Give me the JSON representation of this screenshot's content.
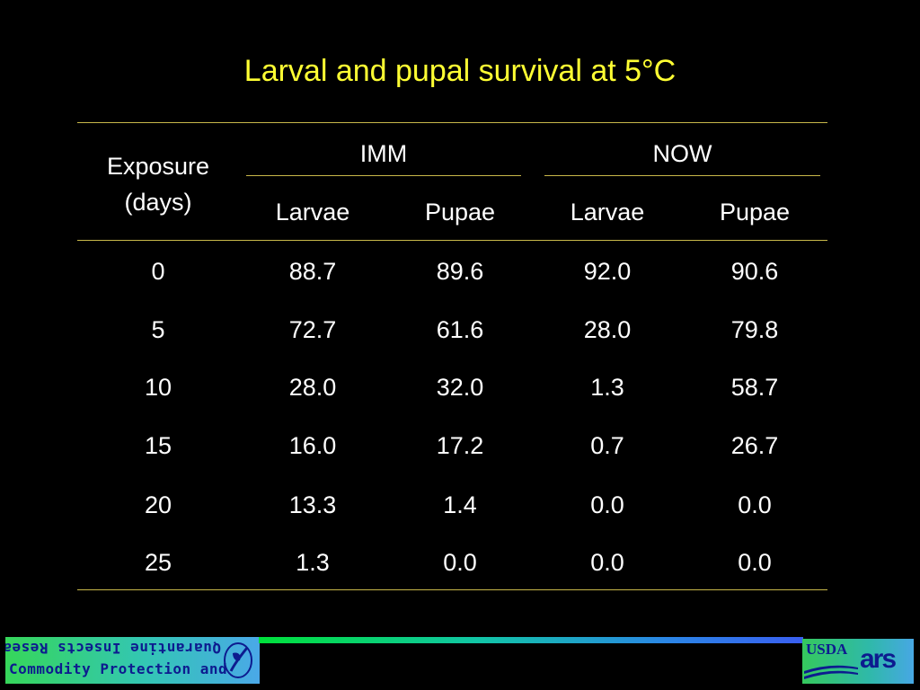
{
  "title": "Larval and pupal survival at 5°C",
  "table": {
    "exposure_header": [
      "Exposure",
      "(days)"
    ],
    "groups": [
      "IMM",
      "NOW"
    ],
    "subheaders": [
      "Larvae",
      "Pupae",
      "Larvae",
      "Pupae"
    ],
    "rows": [
      [
        "0",
        "88.7",
        "89.6",
        "92.0",
        "90.6"
      ],
      [
        "5",
        "72.7",
        "61.6",
        "28.0",
        "79.8"
      ],
      [
        "10",
        "28.0",
        "32.0",
        "1.3",
        "58.7"
      ],
      [
        "15",
        "16.0",
        "17.2",
        "0.7",
        "26.7"
      ],
      [
        "20",
        "13.3",
        "1.4",
        "0.0",
        "0.0"
      ],
      [
        "25",
        "1.3",
        "0.0",
        "0.0",
        "0.0"
      ]
    ]
  },
  "footer": {
    "left_logo_line1": "Quarantine Insects Research",
    "left_logo_line2": "Commodity Protection and",
    "usda": "USDA",
    "ars": "ars"
  },
  "colors": {
    "title": "#ffff33",
    "rule": "#c8b84a",
    "background": "#000000"
  }
}
